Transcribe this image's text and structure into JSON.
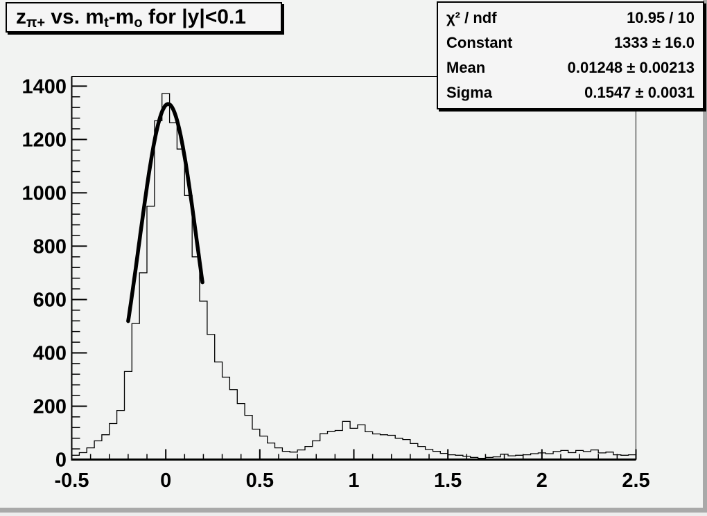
{
  "canvas": {
    "background": "#f2f3f2",
    "edge_shadow_color": "#a9a9a9",
    "box_background": "#f5f5f5",
    "box_border_color": "#000000"
  },
  "title_box": {
    "plain_text": "z_{pi+} vs. m_t-m_o for |y|<0.1",
    "segments": [
      {
        "text": "z"
      },
      {
        "text": "π+",
        "sub": true
      },
      {
        "text": " vs. m"
      },
      {
        "text": "t",
        "sub": true
      },
      {
        "text": "-m"
      },
      {
        "text": "o",
        "sub": true
      },
      {
        "text": " for |y|<0.1"
      }
    ]
  },
  "stats_box": {
    "rows": [
      {
        "label": "χ² / ndf",
        "value": "10.95 / 10"
      },
      {
        "label": "Constant",
        "value": "1333 ± 16.0"
      },
      {
        "label": "Mean",
        "value": "0.01248 ± 0.00213"
      },
      {
        "label": "Sigma",
        "value": "0.1547 ± 0.0031"
      }
    ]
  },
  "chart_data": {
    "type": "bar",
    "subtype": "step-histogram",
    "title": "z_{pi+} vs. m_t-m_o for |y|<0.1",
    "xlabel": "",
    "ylabel": "",
    "x_min": -0.5,
    "x_max": 2.5,
    "y_min": 0,
    "y_max": 1436,
    "grid": false,
    "x_ticks": {
      "major": [
        -0.5,
        0,
        0.5,
        1,
        1.5,
        2,
        2.5
      ],
      "labels": [
        "-0.5",
        "0",
        "0.5",
        "1",
        "1.5",
        "2",
        "2.5"
      ],
      "minor_step": 0.1
    },
    "y_ticks": {
      "major": [
        0,
        200,
        400,
        600,
        800,
        1000,
        1200,
        1400
      ],
      "labels": [
        "0",
        "200",
        "400",
        "600",
        "800",
        "1000",
        "1200",
        "1400"
      ],
      "minor_step": 40
    },
    "bins": {
      "start": -0.5,
      "width": 0.04,
      "values": [
        16,
        26,
        44,
        70,
        93,
        135,
        184,
        330,
        510,
        700,
        950,
        1270,
        1372,
        1263,
        1164,
        990,
        760,
        594,
        469,
        366,
        309,
        262,
        210,
        166,
        114,
        88,
        62,
        44,
        31,
        28,
        36,
        49,
        70,
        97,
        106,
        109,
        143,
        117,
        130,
        104,
        96,
        93,
        91,
        80,
        75,
        60,
        49,
        38,
        31,
        23,
        18,
        16,
        12,
        8,
        5,
        8,
        10,
        20,
        14,
        16,
        18,
        22,
        25,
        22,
        30,
        34,
        26,
        34,
        30,
        36,
        25,
        28,
        18,
        16,
        18
      ]
    },
    "fit": {
      "type": "gaussian",
      "constant": 1333,
      "mean": 0.01248,
      "sigma": 0.1547,
      "range": [
        -0.2,
        0.195
      ],
      "color": "#000000",
      "line_width": 5.5
    },
    "hist_color": "#000000",
    "frame_color": "#000000",
    "legend_position": "none"
  }
}
